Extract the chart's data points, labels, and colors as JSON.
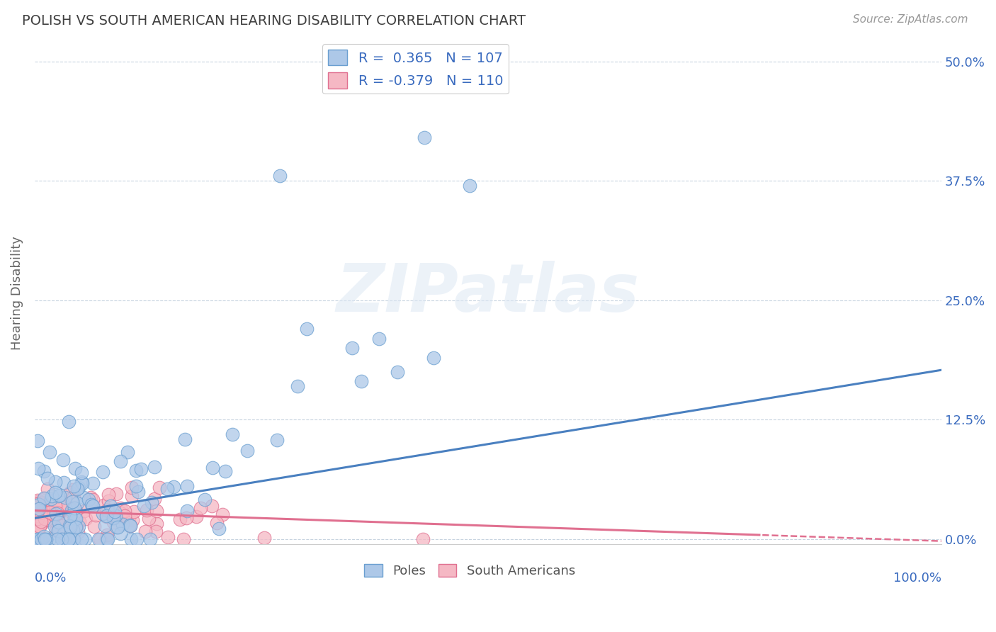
{
  "title": "POLISH VS SOUTH AMERICAN HEARING DISABILITY CORRELATION CHART",
  "source": "Source: ZipAtlas.com",
  "ylabel": "Hearing Disability",
  "ytick_labels": [
    "0.0%",
    "12.5%",
    "25.0%",
    "37.5%",
    "50.0%"
  ],
  "ytick_values": [
    0.0,
    0.125,
    0.25,
    0.375,
    0.5
  ],
  "xlim": [
    0.0,
    1.0
  ],
  "ylim": [
    -0.005,
    0.52
  ],
  "legend_entry1": "R =  0.365   N = 107",
  "legend_entry2": "R = -0.379   N = 110",
  "R_poles": 0.365,
  "N_poles": 107,
  "R_south": -0.379,
  "N_south": 110,
  "color_poles_fill": "#adc8e8",
  "color_south_fill": "#f5b8c4",
  "color_poles_edge": "#6a9fd0",
  "color_south_edge": "#e07090",
  "color_poles_line": "#4a80c0",
  "color_south_line": "#e07090",
  "title_color": "#404040",
  "legend_text_color": "#3a6bbf",
  "axis_label_color": "#3a6bbf",
  "background_color": "#ffffff",
  "grid_color": "#c8d4e0",
  "line_intercept_poles": 0.022,
  "line_slope_poles": 0.155,
  "line_intercept_south": 0.03,
  "line_slope_south": -0.032
}
